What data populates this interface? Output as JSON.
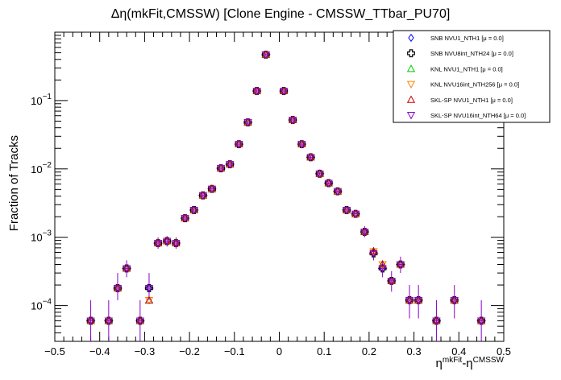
{
  "chart_data": {
    "type": "scatter",
    "title": "Δη(mkFit,CMSSW) [Clone Engine - CMSSW_TTbar_PU70]",
    "ylabel": "Fraction of Tracks",
    "xlabel": {
      "base": "η",
      "sup1": "mkFit",
      "mid": "-η",
      "sup2": "CMSSW"
    },
    "xlim": [
      -0.5,
      0.5
    ],
    "ylim": [
      3e-05,
      1.0
    ],
    "y_scale": "log",
    "x_ticks": [
      -0.5,
      -0.4,
      -0.3,
      -0.2,
      -0.1,
      0,
      0.1,
      0.2,
      0.3,
      0.4,
      0.5
    ],
    "x_tick_labels": [
      "−0.5",
      "−0.4",
      "−0.3",
      "−0.2",
      "−0.1",
      "0",
      "0.1",
      "0.2",
      "0.3",
      "0.4",
      "0.5"
    ],
    "y_major_ticks": [
      0.0001,
      0.001,
      0.01,
      0.1
    ],
    "y_tick_labels": [
      {
        "base": "10",
        "exp": "−4"
      },
      {
        "base": "10",
        "exp": "−3"
      },
      {
        "base": "10",
        "exp": "−2"
      },
      {
        "base": "10",
        "exp": "−1"
      }
    ],
    "legend_position": "top-right",
    "series": [
      {
        "name": "SNB NVU1_NTH1",
        "mu_label": "[μ =  0.0]",
        "marker": "open-diamond",
        "color": "#0000ff"
      },
      {
        "name": "SNB NVU8int_NTH24",
        "mu_label": "[μ =  0.0]",
        "marker": "open-cross",
        "color": "#000000"
      },
      {
        "name": "KNL NVU1_NTH1",
        "mu_label": "[μ =  0.0]",
        "marker": "open-triangle-up",
        "color": "#00cc00"
      },
      {
        "name": "KNL NVU16int_NTH256",
        "mu_label": "[μ =  0.0]",
        "marker": "open-triangle-down",
        "color": "#ff8000"
      },
      {
        "name": "SKL-SP NVU1_NTH1",
        "mu_label": "[μ =  0.0]",
        "marker": "open-triangle-up",
        "color": "#cc0000"
      },
      {
        "name": "SKL-SP NVU16int_NTH64",
        "mu_label": "[μ =  0.0]",
        "marker": "open-triangle-down",
        "color": "#8800cc"
      }
    ],
    "bin_width": 0.02,
    "errorbar_color": "#8800cc",
    "points": [
      {
        "x": -0.42,
        "y": 6e-05,
        "ylow": 2.95e-05,
        "yhigh": 0.00012
      },
      {
        "x": -0.38,
        "y": 6e-05,
        "ylow": 2.95e-05,
        "yhigh": 0.00012
      },
      {
        "x": -0.36,
        "y": 0.00018,
        "ylow": 0.00012,
        "yhigh": 0.0003
      },
      {
        "x": -0.34,
        "y": 0.00035,
        "ylow": 0.00026,
        "yhigh": 0.00046
      },
      {
        "x": -0.31,
        "y": 6e-05,
        "ylow": 2.95e-05,
        "yhigh": 0.00012
      },
      {
        "x": -0.29,
        "y": 0.00018,
        "ylow": 0.00012,
        "yhigh": 0.0003,
        "alt_y": 0.00012
      },
      {
        "x": -0.27,
        "y": 0.00082,
        "ylow": 0.00068,
        "yhigh": 0.001
      },
      {
        "x": -0.25,
        "y": 0.00088,
        "ylow": 0.00073,
        "yhigh": 0.00104
      },
      {
        "x": -0.23,
        "y": 0.00082,
        "ylow": 0.00068,
        "yhigh": 0.001
      },
      {
        "x": -0.21,
        "y": 0.0019
      },
      {
        "x": -0.19,
        "y": 0.0025
      },
      {
        "x": -0.17,
        "y": 0.0041
      },
      {
        "x": -0.15,
        "y": 0.0051
      },
      {
        "x": -0.13,
        "y": 0.0102
      },
      {
        "x": -0.11,
        "y": 0.0117
      },
      {
        "x": -0.09,
        "y": 0.023
      },
      {
        "x": -0.07,
        "y": 0.048
      },
      {
        "x": -0.05,
        "y": 0.138
      },
      {
        "x": -0.03,
        "y": 0.47
      },
      {
        "x": 0.01,
        "y": 0.138
      },
      {
        "x": 0.03,
        "y": 0.052
      },
      {
        "x": 0.05,
        "y": 0.023
      },
      {
        "x": 0.07,
        "y": 0.0148
      },
      {
        "x": 0.09,
        "y": 0.0085
      },
      {
        "x": 0.11,
        "y": 0.0062
      },
      {
        "x": 0.13,
        "y": 0.0047
      },
      {
        "x": 0.15,
        "y": 0.0025
      },
      {
        "x": 0.17,
        "y": 0.0022
      },
      {
        "x": 0.19,
        "y": 0.0012,
        "ylow": 0.001,
        "yhigh": 0.00145
      },
      {
        "x": 0.21,
        "y": 0.00058,
        "ylow": 0.00046,
        "yhigh": 0.00072,
        "alt_y": 0.00062
      },
      {
        "x": 0.23,
        "y": 0.00035,
        "ylow": 0.00026,
        "yhigh": 0.00046,
        "alt_y": 0.0004
      },
      {
        "x": 0.25,
        "y": 0.00023,
        "ylow": 0.00016,
        "yhigh": 0.00032
      },
      {
        "x": 0.27,
        "y": 0.0004,
        "ylow": 0.0003,
        "yhigh": 0.00052
      },
      {
        "x": 0.29,
        "y": 0.00012,
        "ylow": 6.5e-05,
        "yhigh": 0.0002
      },
      {
        "x": 0.31,
        "y": 0.00012,
        "ylow": 6.5e-05,
        "yhigh": 0.0002
      },
      {
        "x": 0.35,
        "y": 6e-05,
        "ylow": 2.95e-05,
        "yhigh": 0.00012
      },
      {
        "x": 0.39,
        "y": 0.00012,
        "ylow": 6.5e-05,
        "yhigh": 0.0002
      },
      {
        "x": 0.45,
        "y": 6e-05,
        "ylow": 2.95e-05,
        "yhigh": 0.00012
      }
    ]
  }
}
